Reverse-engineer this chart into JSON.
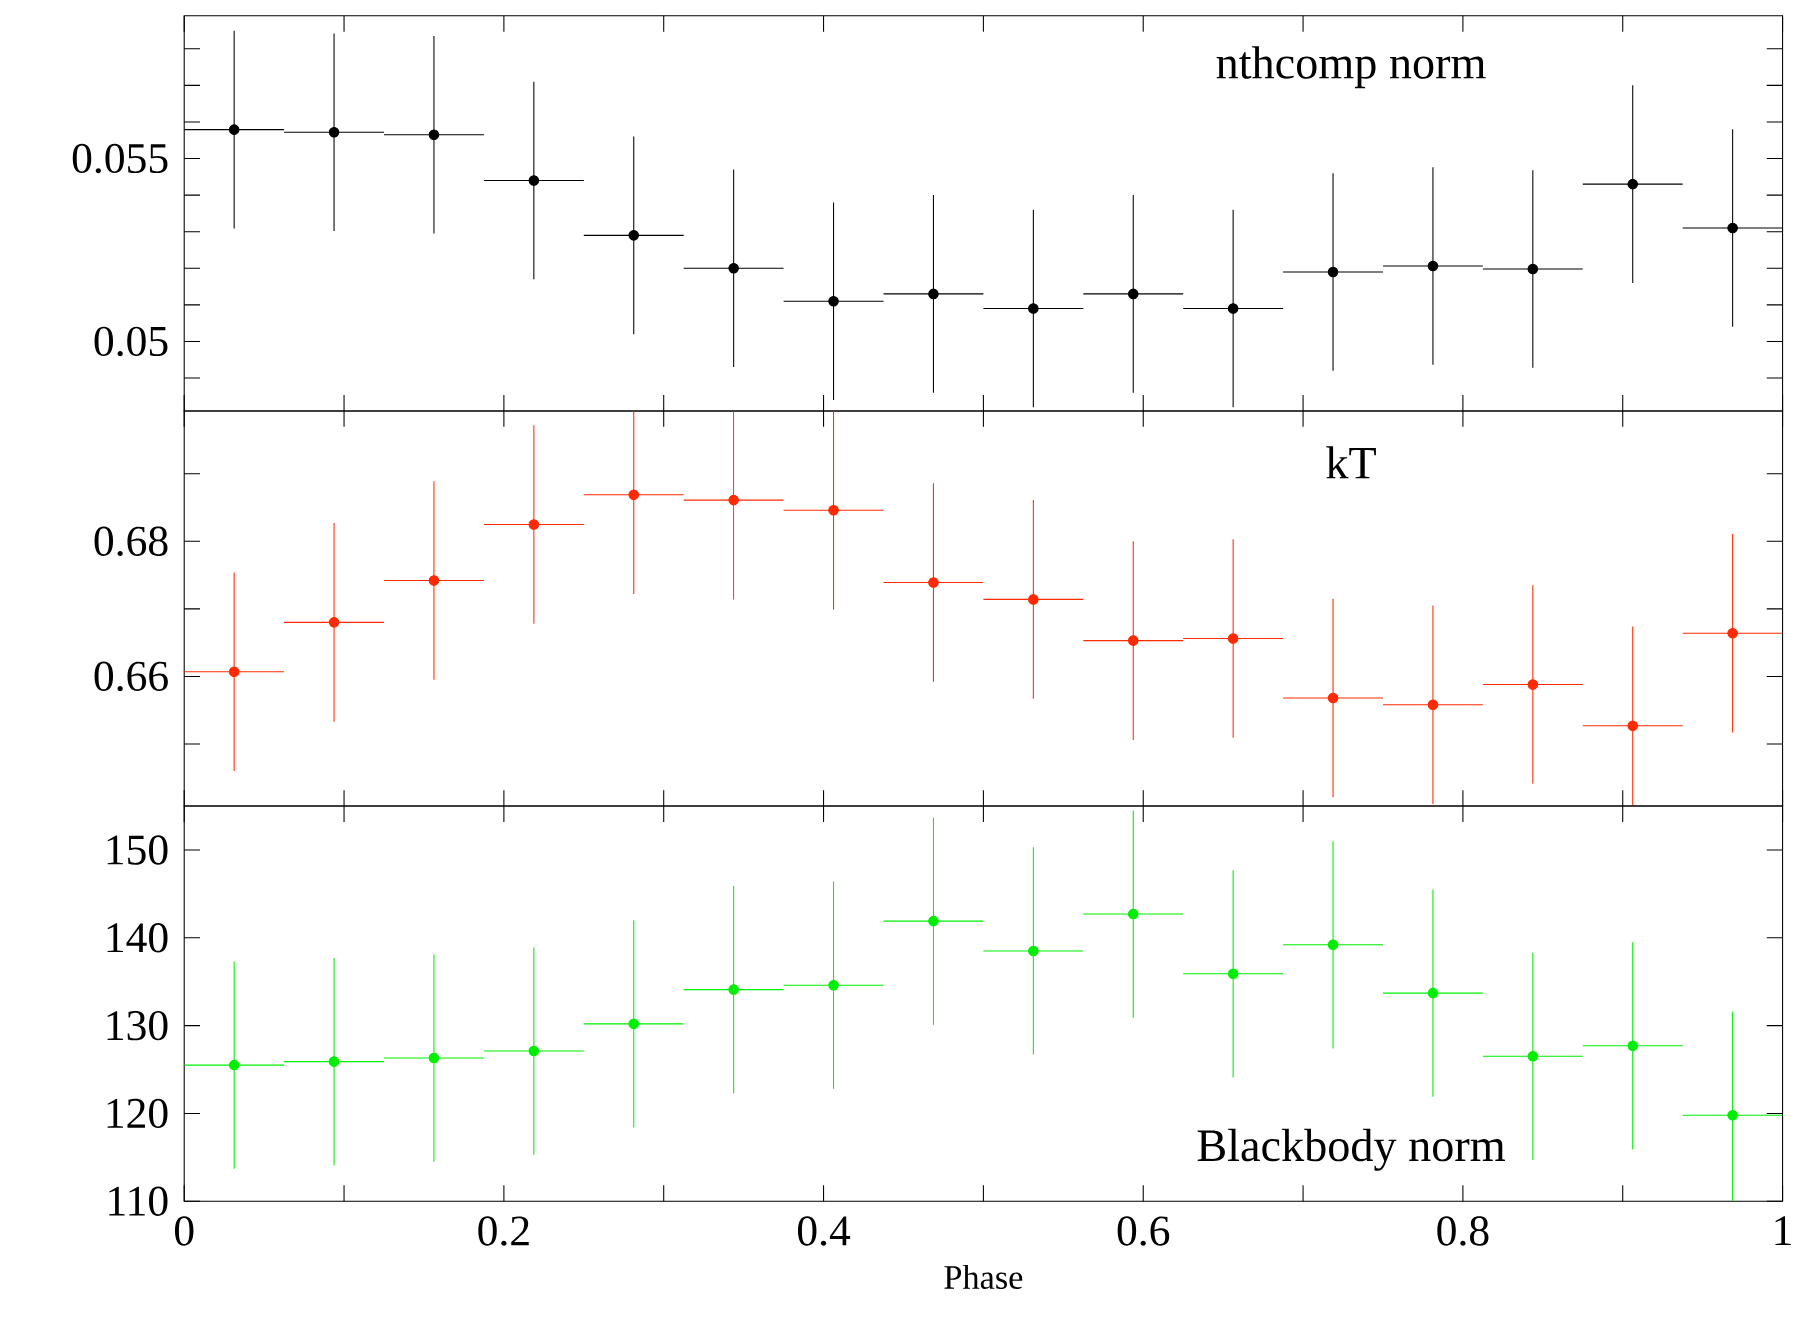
{
  "chart_data": [
    {
      "type": "scatter",
      "title": "nthcomp norm",
      "tick_labels": "y",
      "x": [
        0.03125,
        0.09375,
        0.15625,
        0.21875,
        0.28125,
        0.34375,
        0.40625,
        0.46875,
        0.53125,
        0.59375,
        0.65625,
        0.71875,
        0.78125,
        0.84375,
        0.90625,
        0.96875
      ],
      "series": [
        {
          "color": "#000000",
          "values": [
            0.05579,
            0.05572,
            0.05565,
            0.0544,
            0.0529,
            0.052,
            0.0511,
            0.0513,
            0.0509,
            0.0513,
            0.0509,
            0.0519,
            0.05206,
            0.05198,
            0.0543,
            0.0531
          ],
          "errors": [
            0.0027,
            0.0027,
            0.0027,
            0.0027,
            0.0027,
            0.0027,
            0.0027,
            0.0027,
            0.0027,
            0.0027,
            0.0027,
            0.0027,
            0.0027,
            0.0027,
            0.0027,
            0.0027
          ],
          "xerrors": [
            0.03125,
            0.03125,
            0.03125,
            0.03125,
            0.03125,
            0.03125,
            0.03125,
            0.03125,
            0.03125,
            0.03125,
            0.03125,
            0.03125,
            0.03125,
            0.03125,
            0.03125,
            0.03125
          ]
        }
      ],
      "xlim": [
        0,
        1
      ],
      "ylim": [
        0.0481,
        0.0589
      ],
      "xticks": [
        0,
        {
          "value": 0.1,
          "label": null
        },
        0.2,
        {
          "value": 0.3,
          "label": null
        },
        0.4,
        {
          "value": 0.5,
          "label": null
        },
        0.6,
        {
          "value": 0.7,
          "label": null
        },
        0.8,
        {
          "value": 0.9,
          "label": null
        },
        1
      ],
      "yticks": [
        {
          "value": 0.049,
          "label": null
        },
        0.05,
        {
          "value": 0.051,
          "label": null
        },
        {
          "value": 0.052,
          "label": null
        },
        {
          "value": 0.053,
          "label": null
        },
        {
          "value": 0.054,
          "label": null
        },
        0.055,
        {
          "value": 0.056,
          "label": null
        },
        {
          "value": 0.057,
          "label": null
        },
        {
          "value": 0.058,
          "label": null
        }
      ]
    },
    {
      "type": "scatter",
      "title": "kT",
      "tick_labels": "y",
      "x": [
        0.03125,
        0.09375,
        0.15625,
        0.21875,
        0.28125,
        0.34375,
        0.40625,
        0.46875,
        0.53125,
        0.59375,
        0.65625,
        0.71875,
        0.78125,
        0.84375,
        0.90625,
        0.96875
      ],
      "series": [
        {
          "color": "#ff2a00",
          "values": [
            0.6607,
            0.668,
            0.6742,
            0.6825,
            0.6869,
            0.6861,
            0.6846,
            0.6739,
            0.6714,
            0.6653,
            0.6656,
            0.6568,
            0.6558,
            0.6588,
            0.6527,
            0.6664
          ],
          "errors": [
            0.0147,
            0.0147,
            0.0147,
            0.0147,
            [
              0.6722,
              0.6993
            ],
            [
              0.6714,
              0.6993
            ],
            0.0147,
            0.0147,
            0.0147,
            0.0147,
            0.0147,
            0.0147,
            0.0147,
            0.0147,
            [
              0.6408,
              0.6674
            ],
            0.0147
          ],
          "xerrors": [
            0.03125,
            0.03125,
            0.03125,
            0.03125,
            0.03125,
            0.03125,
            0.03125,
            0.03125,
            0.03125,
            0.03125,
            0.03125,
            0.03125,
            0.03125,
            0.03125,
            0.03125,
            0.03125
          ]
        }
      ],
      "xlim": [
        0,
        1
      ],
      "ylim": [
        0.6408,
        0.6993
      ],
      "xticks": [
        0,
        {
          "value": 0.1,
          "label": null
        },
        0.2,
        {
          "value": 0.3,
          "label": null
        },
        0.4,
        {
          "value": 0.5,
          "label": null
        },
        0.6,
        {
          "value": 0.7,
          "label": null
        },
        0.8,
        {
          "value": 0.9,
          "label": null
        },
        1
      ],
      "yticks": [
        {
          "value": 0.65,
          "label": null
        },
        0.66,
        {
          "value": 0.67,
          "label": null
        },
        0.68,
        {
          "value": 0.69,
          "label": null
        }
      ]
    },
    {
      "type": "scatter",
      "title": "Blackbody norm",
      "xlabel": "Phase",
      "x": [
        0.03125,
        0.09375,
        0.15625,
        0.21875,
        0.28125,
        0.34375,
        0.40625,
        0.46875,
        0.53125,
        0.59375,
        0.65625,
        0.71875,
        0.78125,
        0.84375,
        0.90625,
        0.96875
      ],
      "series": [
        {
          "color": "#00ee00",
          "values": [
            125.5,
            125.9,
            126.3,
            127.1,
            130.2,
            134.1,
            134.6,
            141.9,
            138.5,
            142.7,
            135.9,
            139.2,
            133.7,
            126.5,
            127.7,
            119.8
          ],
          "errors": [
            11.8,
            11.8,
            11.8,
            11.8,
            11.8,
            11.8,
            11.8,
            11.8,
            11.8,
            11.8,
            11.8,
            11.8,
            11.8,
            11.8,
            11.8,
            [
              110,
              131.6
            ]
          ],
          "xerrors": [
            0.03125,
            0.03125,
            0.03125,
            0.03125,
            0.03125,
            0.03125,
            0.03125,
            0.03125,
            0.03125,
            0.03125,
            0.03125,
            0.03125,
            0.03125,
            0.03125,
            0.03125,
            0.03125
          ]
        }
      ],
      "xlim": [
        0,
        1
      ],
      "ylim": [
        110,
        155
      ],
      "xticks": [
        0,
        {
          "value": 0.1,
          "label": null
        },
        0.2,
        {
          "value": 0.3,
          "label": null
        },
        0.4,
        {
          "value": 0.5,
          "label": null
        },
        0.6,
        {
          "value": 0.7,
          "label": null
        },
        0.8,
        {
          "value": 0.9,
          "label": null
        },
        1
      ],
      "yticks": [
        110,
        120,
        130,
        140,
        150
      ]
    }
  ]
}
